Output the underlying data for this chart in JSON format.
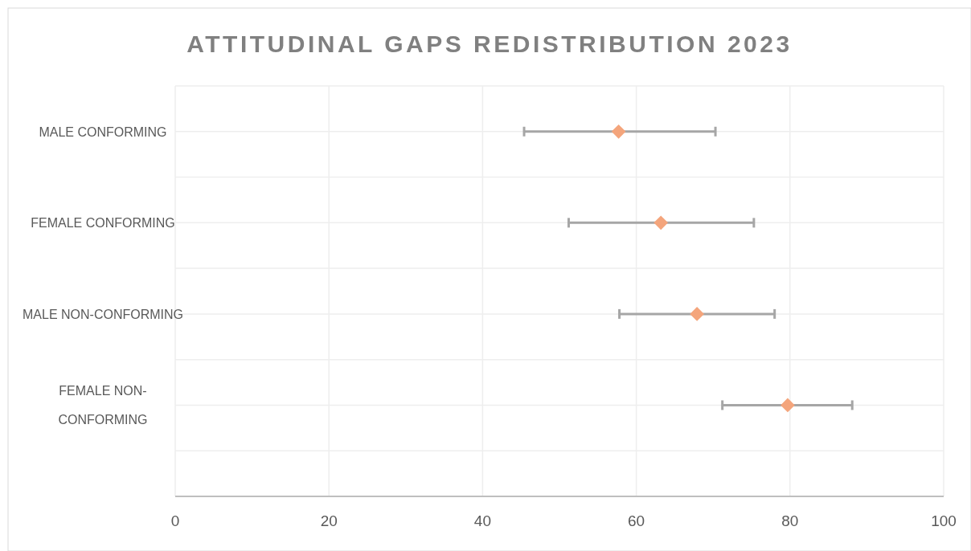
{
  "chart_data": {
    "type": "scatter",
    "orientation": "horizontal",
    "title": "ATTITUDINAL GAPS REDISTRIBUTION 2023",
    "categories": [
      "MALE CONFORMING",
      "FEMALE CONFORMING",
      "MALE NON-CONFORMING",
      "FEMALE NON-CONFORMING"
    ],
    "values": [
      57.7,
      63.2,
      67.9,
      79.7
    ],
    "errors": [
      [
        45.4,
        70.3
      ],
      [
        51.2,
        75.3
      ],
      [
        57.8,
        78.0
      ],
      [
        71.2,
        88.1
      ]
    ],
    "color": "#f4a57c",
    "xlim": [
      0,
      100
    ],
    "xticks": [
      0,
      20,
      40,
      60,
      80,
      100
    ],
    "grid": true,
    "marker": "diamond"
  }
}
